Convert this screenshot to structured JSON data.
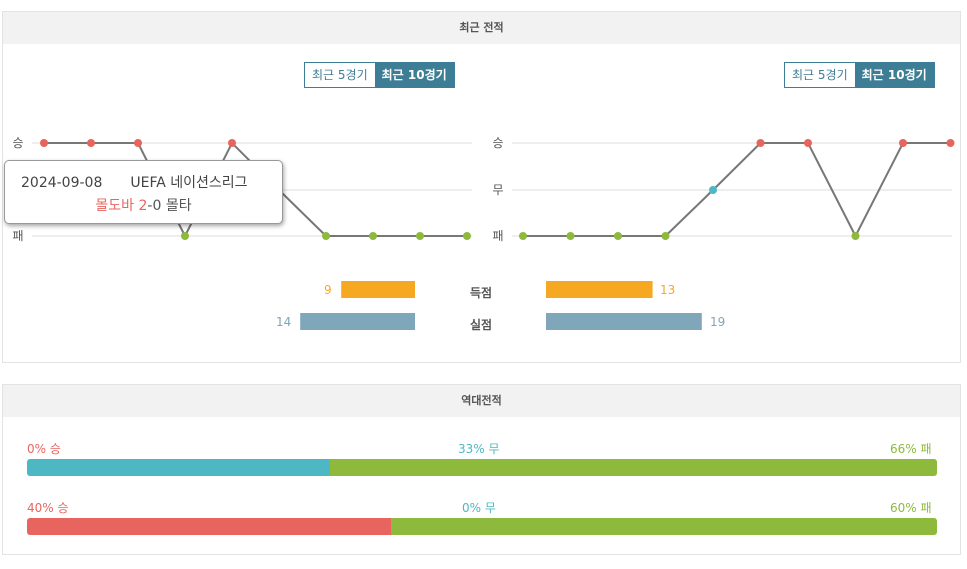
{
  "recent": {
    "title": "최근 전적",
    "tabs": [
      "최근 5경기",
      "최근 10경기"
    ],
    "active_tab": 1,
    "y_labels": [
      "승",
      "무",
      "패"
    ],
    "goals_label": "득점",
    "conceded_label": "실점"
  },
  "chart_data": [
    {
      "type": "line",
      "chart": "recent-form-left",
      "categories": [
        "승",
        "무",
        "패"
      ],
      "results": [
        "승",
        "승",
        "승",
        "패",
        "승",
        "무",
        "패",
        "패",
        "패",
        "패"
      ],
      "goals_for": 9,
      "goals_against": 14
    },
    {
      "type": "line",
      "chart": "recent-form-right",
      "categories": [
        "승",
        "무",
        "패"
      ],
      "results": [
        "패",
        "패",
        "패",
        "패",
        "무",
        "승",
        "승",
        "패",
        "승",
        "승"
      ],
      "goals_for": 13,
      "goals_against": 19
    },
    {
      "type": "bar",
      "chart": "h2h",
      "rows": [
        {
          "win_label": "0% 승",
          "draw_label": "33% 무",
          "loss_label": "66% 패",
          "win": 0,
          "draw": 33,
          "loss": 66
        },
        {
          "win_label": "40% 승",
          "draw_label": "0% 무",
          "loss_label": "60% 패",
          "win": 40,
          "draw": 0,
          "loss": 60
        }
      ]
    }
  ],
  "tooltip": {
    "date": "2024-09-08",
    "competition": "UEFA 네이션스리그",
    "home_team": "몰도바",
    "home_score": "2",
    "separator": "-",
    "away_score": "0",
    "away_team": "몰타"
  },
  "h2h": {
    "title": "역대전적"
  },
  "colors": {
    "win": "#e8655f",
    "draw": "#4db8c4",
    "loss": "#8dba3c",
    "goals": "#f7a823",
    "conceded": "#7fa6ba",
    "line": "#777777",
    "grid": "#dddddd",
    "tab": "#3d7e96"
  }
}
